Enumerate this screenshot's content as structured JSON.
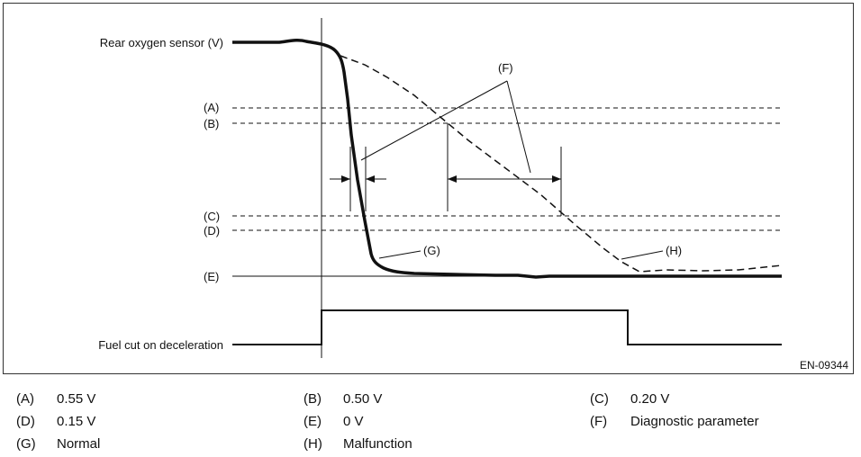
{
  "diagram": {
    "signal_label": "Rear oxygen sensor (V)",
    "fuel_cut_label": "Fuel cut on deceleration",
    "levels": [
      "(A)",
      "(B)",
      "(C)",
      "(D)",
      "(E)"
    ],
    "callout_f": "(F)",
    "callout_g": "(G)",
    "callout_h": "(H)",
    "figure_id": "EN-09344"
  },
  "legend": [
    {
      "code": "(A)",
      "value": "0.55 V"
    },
    {
      "code": "(B)",
      "value": "0.50 V"
    },
    {
      "code": "(C)",
      "value": "0.20 V"
    },
    {
      "code": "(D)",
      "value": "0.15 V"
    },
    {
      "code": "(E)",
      "value": "0 V"
    },
    {
      "code": "(F)",
      "value": "Diagnostic parameter"
    },
    {
      "code": "(G)",
      "value": "Normal"
    },
    {
      "code": "(H)",
      "value": "Malfunction"
    }
  ]
}
